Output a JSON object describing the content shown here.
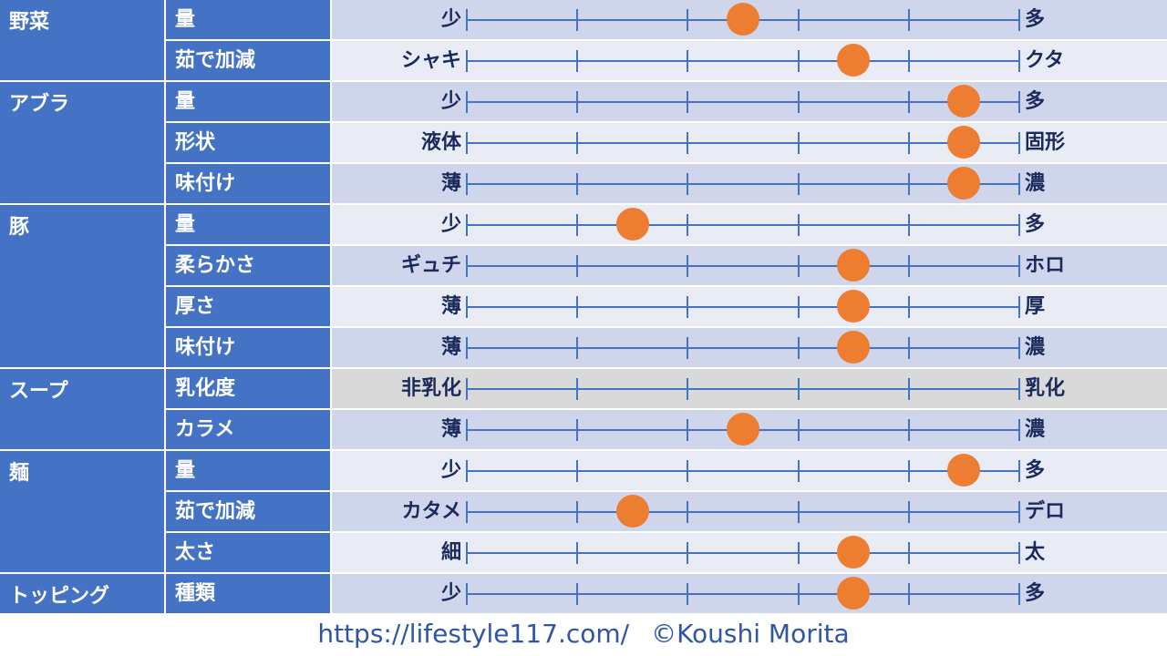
{
  "categories": [
    {
      "name": "野菜",
      "items": [
        {
          "name": "量",
          "left": "少",
          "right": "多",
          "level": 0.5
        },
        {
          "name": "茹で加減",
          "left": "シャキ",
          "right": "クタ",
          "level": 0.7
        }
      ]
    },
    {
      "name": "アブラ",
      "items": [
        {
          "name": "量",
          "left": "少",
          "right": "多",
          "level": 0.9
        },
        {
          "name": "形状",
          "left": "液体",
          "right": "固形",
          "level": 0.9
        },
        {
          "name": "味付け",
          "left": "薄",
          "right": "濃",
          "level": 0.9
        }
      ]
    },
    {
      "name": "豚",
      "items": [
        {
          "name": "量",
          "left": "少",
          "right": "多",
          "level": 0.3
        },
        {
          "name": "柔らかさ",
          "left": "ギュチ",
          "right": "ホロ",
          "level": 0.7
        },
        {
          "name": "厚さ",
          "left": "薄",
          "right": "厚",
          "level": 0.7
        },
        {
          "name": "味付け",
          "left": "薄",
          "right": "濃",
          "level": 0.7
        }
      ]
    },
    {
      "name": "スープ",
      "items": [
        {
          "name": "乳化度",
          "left": "非乳化",
          "right": "乳化",
          "level": null
        },
        {
          "name": "カラメ",
          "left": "薄",
          "right": "濃",
          "level": 0.5
        }
      ]
    },
    {
      "name": "麺",
      "items": [
        {
          "name": "量",
          "left": "少",
          "right": "多",
          "level": 0.9
        },
        {
          "name": "茹で加減",
          "left": "カタメ",
          "right": "デロ",
          "level": 0.3
        },
        {
          "name": "太さ",
          "left": "細",
          "right": "太",
          "level": 0.7
        }
      ]
    },
    {
      "name": "トッピング",
      "items": [
        {
          "name": "種類",
          "left": "少",
          "right": "多",
          "level": 0.7
        }
      ]
    }
  ],
  "scale_divisions": 5,
  "colors": {
    "category_bg": "#4472c4",
    "marker": "#ed7d31",
    "band_odd": "#cfd5ea",
    "band_even": "#e9ebf5",
    "disabled": "#d9d9d9"
  },
  "footer": {
    "url": "https://lifestyle117.com/",
    "copyright": "©Koushi Morita"
  }
}
